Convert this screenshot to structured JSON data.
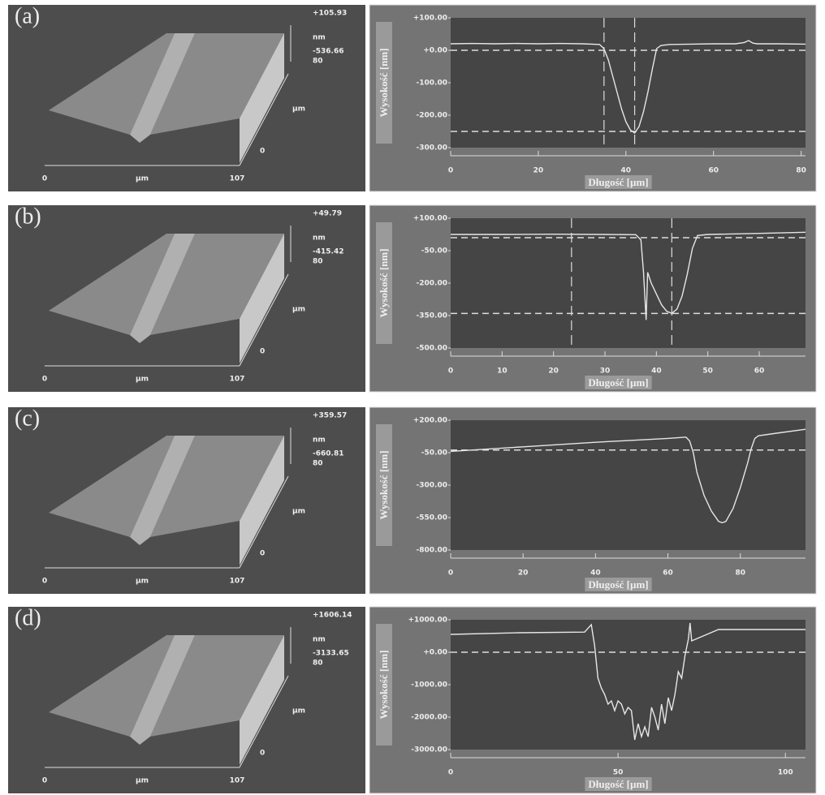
{
  "chart_data": [
    {
      "type": "line",
      "ylabel": "Wysokość [nm]",
      "xlabel": "Długość [µm]",
      "color": "#e6e6e6",
      "xlim": [
        0,
        81
      ],
      "ylim": [
        -300,
        100
      ],
      "xticks": [
        0,
        20,
        40,
        60,
        80
      ],
      "yticks": [
        {
          "value": 100,
          "label": "+100.00"
        },
        {
          "value": 0,
          "label": "+0.00"
        },
        {
          "value": -100,
          "label": "-100.00"
        },
        {
          "value": -200,
          "label": "-200.00"
        },
        {
          "value": -300,
          "label": "-300.00"
        }
      ],
      "x": [
        0,
        5,
        10,
        15,
        20,
        25,
        30,
        34,
        35,
        36,
        37,
        38,
        39,
        40,
        41,
        42,
        43,
        44,
        45,
        46,
        47,
        48,
        50,
        55,
        60,
        65,
        67,
        68,
        69,
        70,
        75,
        81
      ],
      "values": [
        20,
        21,
        20,
        21,
        20,
        21,
        20,
        18,
        5,
        -30,
        -80,
        -130,
        -180,
        -220,
        -245,
        -255,
        -235,
        -190,
        -130,
        -60,
        5,
        15,
        18,
        19,
        20,
        20,
        24,
        30,
        22,
        20,
        20,
        19
      ],
      "hlines": [
        0,
        -250
      ],
      "vlines": [
        35,
        42
      ]
    },
    {
      "type": "line",
      "ylabel": "Wysokość [nm]",
      "xlabel": "Długość [µm]",
      "color": "#e6e6e6",
      "xlim": [
        0,
        69
      ],
      "ylim": [
        -500,
        100
      ],
      "xticks": [
        0,
        10,
        20,
        30,
        40,
        50,
        60
      ],
      "yticks": [
        {
          "value": 100,
          "label": "+100.00"
        },
        {
          "value": -50,
          "label": "-50.00"
        },
        {
          "value": -200,
          "label": "-200.00"
        },
        {
          "value": -350,
          "label": "-350.00"
        },
        {
          "value": -500,
          "label": "-500.00"
        }
      ],
      "x": [
        0,
        10,
        20,
        30,
        36,
        37,
        37.5,
        38,
        38.3,
        39,
        40,
        41,
        42,
        43,
        44,
        45,
        46,
        47,
        48,
        50,
        60,
        69
      ],
      "values": [
        25,
        25,
        26,
        25,
        24,
        0,
        -150,
        -370,
        -150,
        -200,
        -250,
        -300,
        -330,
        -340,
        -320,
        -260,
        -160,
        -40,
        20,
        25,
        30,
        35
      ],
      "hlines": [
        10,
        -340
      ],
      "vlines": [
        23.5,
        43
      ]
    },
    {
      "type": "line",
      "ylabel": "Wysokość [nm]",
      "xlabel": "Długość [µm]",
      "color": "#e6e6e6",
      "xlim": [
        0,
        98
      ],
      "ylim": [
        -800,
        200
      ],
      "xticks": [
        0,
        20,
        40,
        60,
        80
      ],
      "yticks": [
        {
          "value": 200,
          "label": "+200.00"
        },
        {
          "value": -50,
          "label": "-50.00"
        },
        {
          "value": -300,
          "label": "-300.00"
        },
        {
          "value": -550,
          "label": "-550.00"
        },
        {
          "value": -800,
          "label": "-800.00"
        }
      ],
      "x": [
        0,
        20,
        40,
        60,
        65,
        66,
        67,
        68,
        70,
        72,
        74,
        75,
        76,
        78,
        80,
        82,
        83,
        84,
        85,
        90,
        98
      ],
      "values": [
        -40,
        -5,
        30,
        60,
        70,
        40,
        -50,
        -200,
        -380,
        -500,
        -580,
        -590,
        -580,
        -480,
        -320,
        -130,
        -20,
        60,
        80,
        100,
        130
      ],
      "hlines": [
        -30
      ],
      "vlines": []
    },
    {
      "type": "line",
      "ylabel": "Wysokość [nm]",
      "xlabel": "Długość [µm]",
      "color": "#e6e6e6",
      "xlim": [
        0,
        106
      ],
      "ylim": [
        -3000,
        1000
      ],
      "xticks": [
        0,
        50,
        100
      ],
      "yticks": [
        {
          "value": 1000,
          "label": "+1000.00"
        },
        {
          "value": 0,
          "label": "+0.00"
        },
        {
          "value": -1000,
          "label": "-1000.00"
        },
        {
          "value": -2000,
          "label": "-2000.00"
        },
        {
          "value": -3000,
          "label": "-3000.00"
        }
      ],
      "x": [
        0,
        20,
        40,
        42,
        43,
        44,
        45,
        46,
        47,
        48,
        49,
        50,
        51,
        52,
        53,
        54,
        55,
        56,
        57,
        58,
        59,
        60,
        61,
        62,
        63,
        64,
        65,
        66,
        67,
        68,
        69,
        70,
        71,
        71.5,
        72,
        80,
        106
      ],
      "values": [
        550,
        600,
        620,
        850,
        200,
        -800,
        -1100,
        -1300,
        -1600,
        -1500,
        -1800,
        -1500,
        -1600,
        -1900,
        -1700,
        -1800,
        -2700,
        -2200,
        -2600,
        -2300,
        -2600,
        -1700,
        -2000,
        -2400,
        -1600,
        -2200,
        -1400,
        -1800,
        -1300,
        -600,
        -800,
        -100,
        400,
        900,
        350,
        700,
        700
      ],
      "hlines": [
        0
      ],
      "vlines": []
    }
  ],
  "surfaces": [
    {
      "label": "(a)",
      "z_top": "+105.93",
      "z_unit": "nm",
      "z_bottom": "-536.66",
      "y_top": "80",
      "y_unit": "µm",
      "y_bottom": "0",
      "x_left": "0",
      "x_unit": "µm",
      "x_right": "107"
    },
    {
      "label": "(b)",
      "z_top": "+49.79",
      "z_unit": "nm",
      "z_bottom": "-415.42",
      "y_top": "80",
      "y_unit": "µm",
      "y_bottom": "0",
      "x_left": "0",
      "x_unit": "µm",
      "x_right": "107"
    },
    {
      "label": "(c)",
      "z_top": "+359.57",
      "z_unit": "nm",
      "z_bottom": "-660.81",
      "y_top": "80",
      "y_unit": "µm",
      "y_bottom": "0",
      "x_left": "0",
      "x_unit": "µm",
      "x_right": "107"
    },
    {
      "label": "(d)",
      "z_top": "+1606.14",
      "z_unit": "nm",
      "z_bottom": "-3133.65",
      "y_top": "80",
      "y_unit": "µm",
      "y_bottom": "0",
      "x_left": "0",
      "x_unit": "µm",
      "x_right": "107"
    }
  ]
}
